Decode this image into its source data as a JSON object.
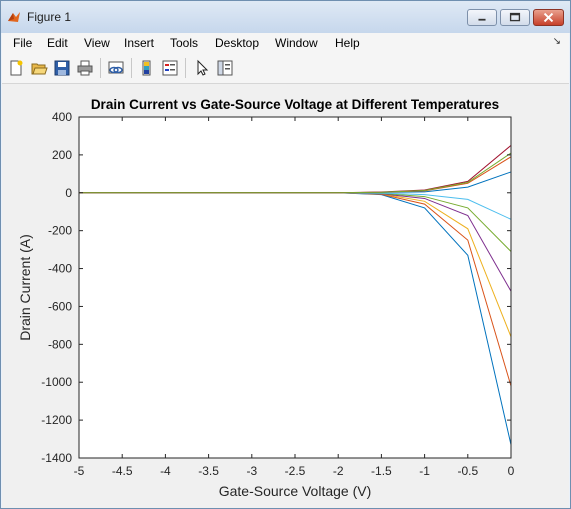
{
  "window": {
    "title": "Figure 1",
    "buttons": {
      "minimize": "minimize",
      "maximize": "maximize",
      "close": "close"
    }
  },
  "menu": {
    "items": [
      {
        "label": "File"
      },
      {
        "label": "Edit"
      },
      {
        "label": "View"
      },
      {
        "label": "Insert"
      },
      {
        "label": "Tools"
      },
      {
        "label": "Desktop"
      },
      {
        "label": "Window"
      },
      {
        "label": "Help"
      }
    ],
    "dock_arrow": "↘"
  },
  "toolbar": {
    "buttons": [
      {
        "name": "new-figure-icon"
      },
      {
        "name": "open-file-icon"
      },
      {
        "name": "save-icon"
      },
      {
        "name": "print-icon"
      },
      {
        "name": "link-plot-icon"
      },
      {
        "name": "insert-colorbar-icon"
      },
      {
        "name": "insert-legend-icon"
      },
      {
        "name": "edit-plot-arrow-icon"
      },
      {
        "name": "show-plot-tools-icon"
      }
    ]
  },
  "chart_data": {
    "type": "line",
    "title": "Drain Current vs Gate-Source Voltage at Different Temperatures",
    "xlabel": "Gate-Source Voltage (V)",
    "ylabel": "Drain Current (A)",
    "xlim": [
      -5,
      0
    ],
    "ylim": [
      -1400,
      400
    ],
    "xticks": [
      "-5",
      "-4.5",
      "-4",
      "-3.5",
      "-3",
      "-2.5",
      "-2",
      "-1.5",
      "-1",
      "-0.5",
      "0"
    ],
    "yticks": [
      "400",
      "200",
      "0",
      "-200",
      "-400",
      "-600",
      "-800",
      "-1000",
      "-1200",
      "-1400"
    ],
    "grid": false,
    "x": [
      -5,
      -4.5,
      -4,
      -3.5,
      -3,
      -2.5,
      -2,
      -1.5,
      -1,
      -0.5,
      0
    ],
    "series": [
      {
        "color": "#0072bd",
        "values": [
          0,
          0,
          0,
          0,
          0,
          0,
          0,
          -10,
          -80,
          -330,
          -1330
        ]
      },
      {
        "color": "#d95319",
        "values": [
          0,
          0,
          0,
          0,
          0,
          0,
          0,
          -8,
          -60,
          -250,
          -1020
        ]
      },
      {
        "color": "#edb120",
        "values": [
          0,
          0,
          0,
          0,
          0,
          0,
          0,
          -6,
          -45,
          -190,
          -760
        ]
      },
      {
        "color": "#7e2f8e",
        "values": [
          0,
          0,
          0,
          0,
          0,
          0,
          0,
          -5,
          -30,
          -120,
          -520
        ]
      },
      {
        "color": "#77ac30",
        "values": [
          0,
          0,
          0,
          0,
          0,
          0,
          0,
          -3,
          -20,
          -80,
          -310
        ]
      },
      {
        "color": "#4dbeee",
        "values": [
          0,
          0,
          0,
          0,
          0,
          0,
          0,
          -2,
          -10,
          -35,
          -140
        ]
      },
      {
        "color": "#0072bd",
        "values": [
          0,
          0,
          0,
          0,
          0,
          0,
          0,
          2,
          5,
          30,
          110
        ]
      },
      {
        "color": "#d95319",
        "values": [
          0,
          0,
          0,
          0,
          0,
          0,
          0,
          3,
          10,
          50,
          190
        ]
      },
      {
        "color": "#a2142f",
        "values": [
          0,
          0,
          0,
          0,
          0,
          0,
          0,
          4,
          15,
          60,
          250
        ]
      },
      {
        "color": "#77ac30",
        "values": [
          0,
          0,
          0,
          0,
          0,
          0,
          0,
          3,
          12,
          55,
          210
        ]
      }
    ]
  }
}
